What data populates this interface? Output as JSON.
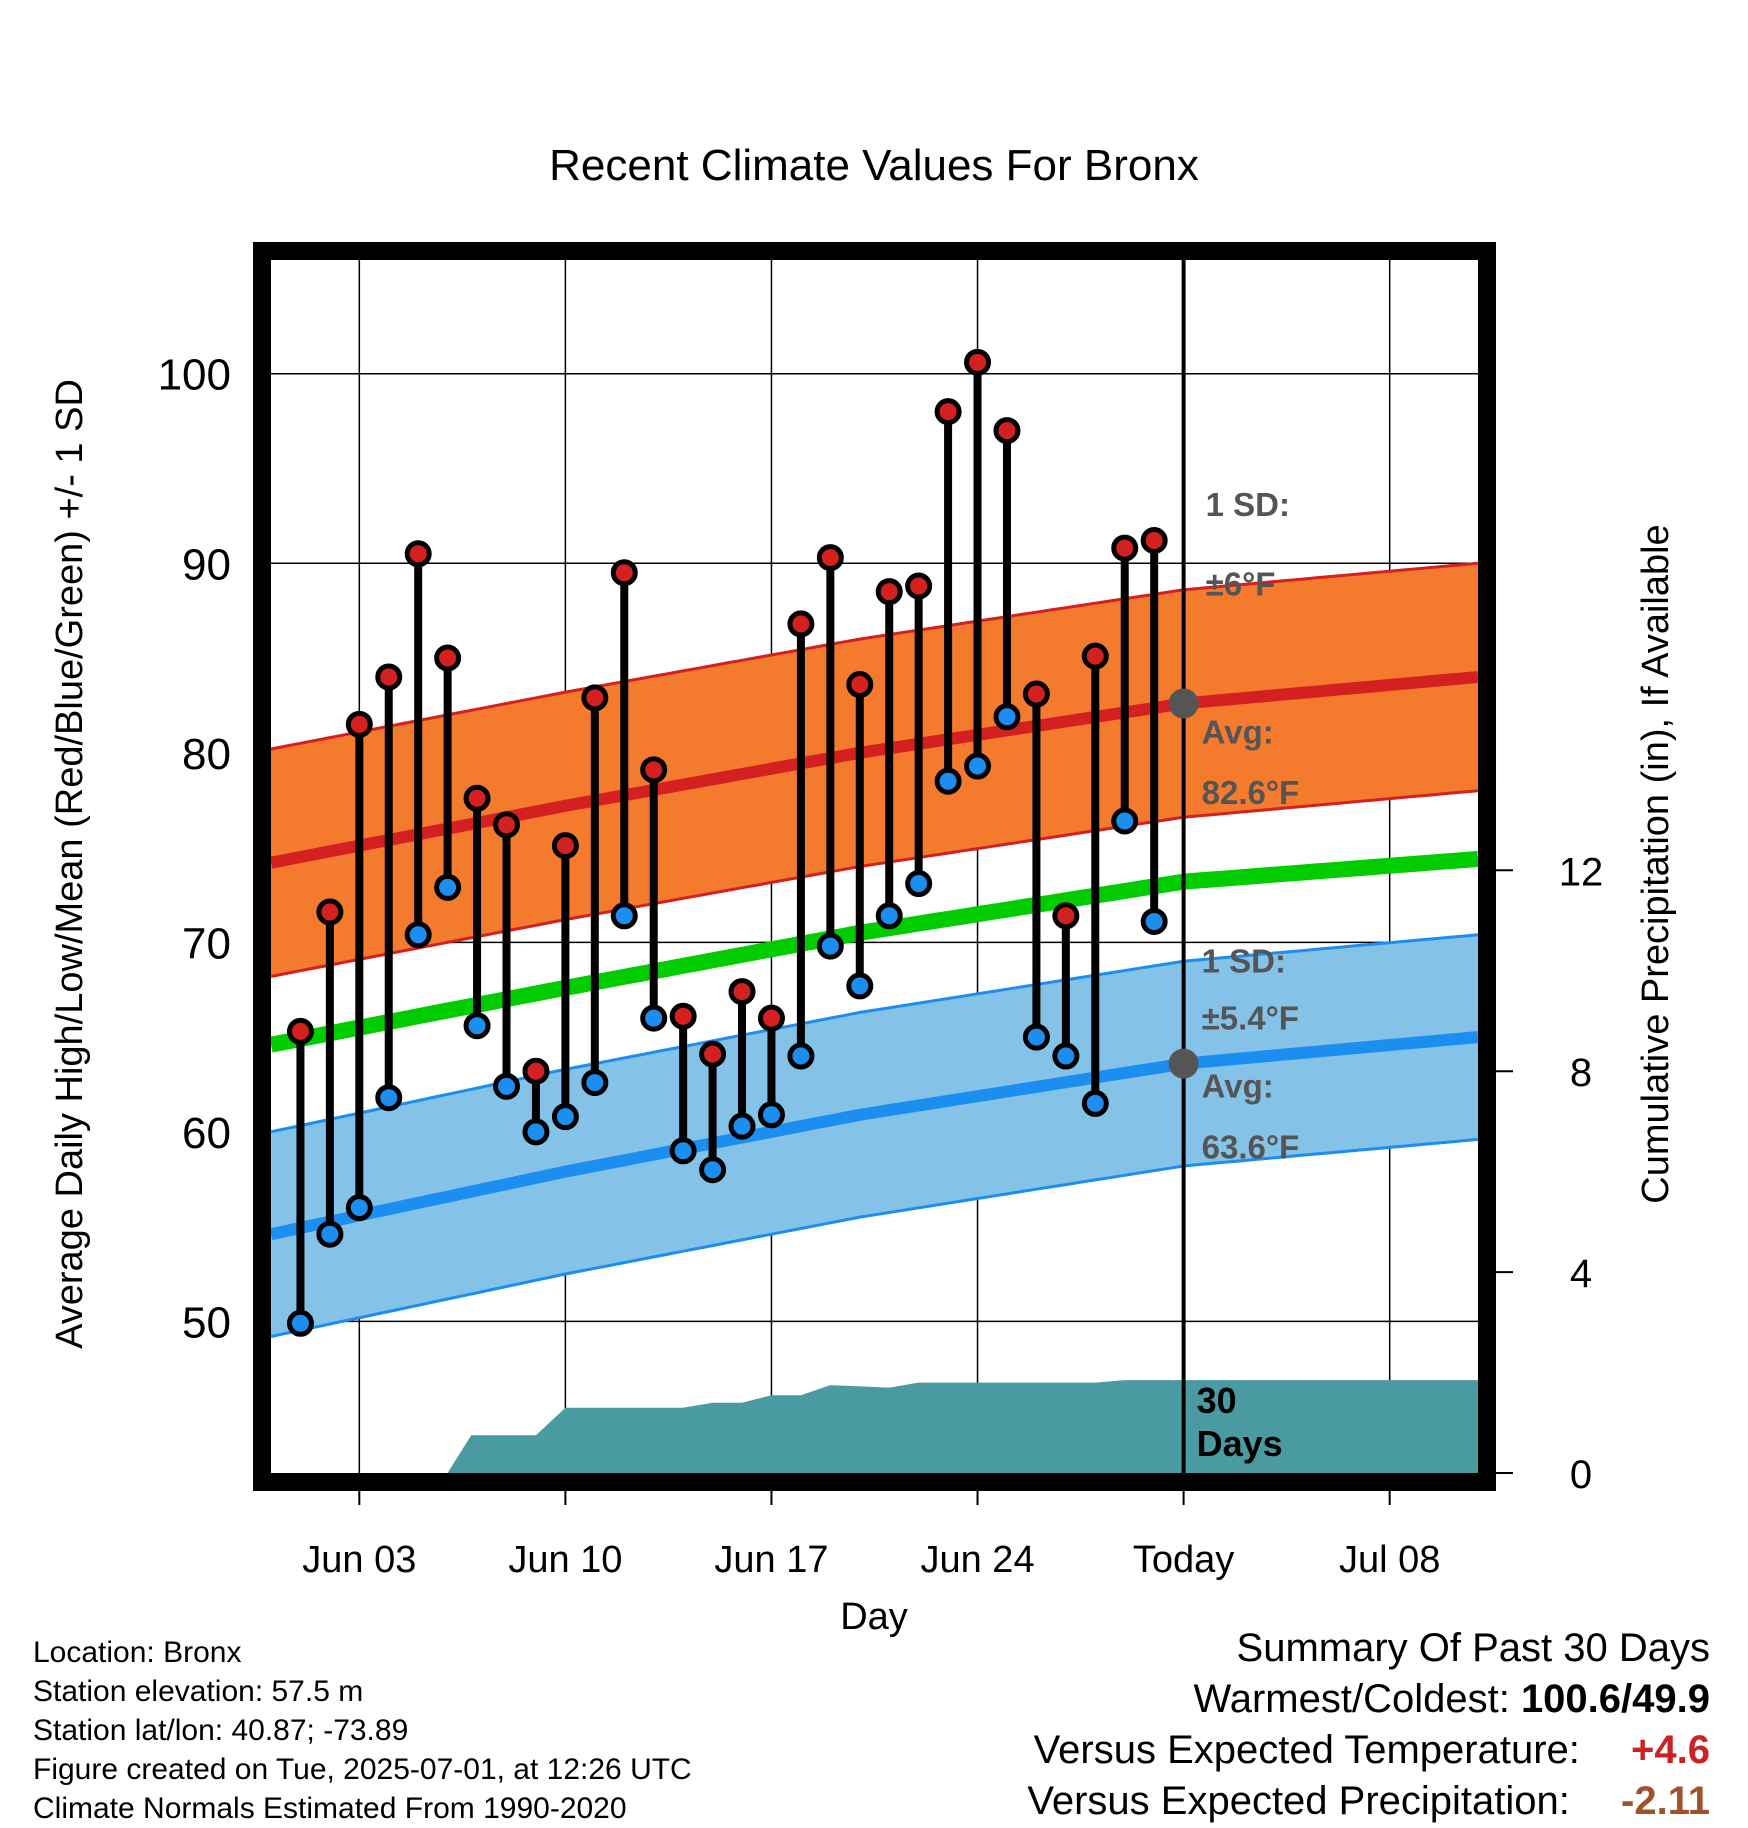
{
  "chart_data": {
    "type": "line",
    "title": "Recent Climate Values For Bronx",
    "xlabel": "Day",
    "ylabel": "Average Daily High/Low/Mean (Red/Blue/Green) +/- 1 SD",
    "y2label": "Cumulative Precipitation (in), If Available",
    "xlim": [
      0,
      41
    ],
    "ylim": [
      42,
      106
    ],
    "y2lim": [
      0,
      24
    ],
    "x_ticks": [
      {
        "x": 3,
        "label": "Jun 03"
      },
      {
        "x": 10,
        "label": "Jun 10"
      },
      {
        "x": 17,
        "label": "Jun 17"
      },
      {
        "x": 24,
        "label": "Jun 24"
      },
      {
        "x": 31,
        "label": "Today"
      },
      {
        "x": 38,
        "label": "Jul 08"
      }
    ],
    "y_ticks": [
      50,
      60,
      70,
      80,
      90,
      100
    ],
    "y2_ticks": [
      0,
      4,
      8,
      12
    ],
    "today_x": 31,
    "grid": true,
    "days": [
      1,
      2,
      3,
      4,
      5,
      6,
      7,
      8,
      9,
      10,
      11,
      12,
      13,
      14,
      15,
      16,
      17,
      18,
      19,
      20,
      21,
      22,
      23,
      24,
      25,
      26,
      27,
      28,
      29,
      30
    ],
    "daily_high": [
      65.3,
      71.6,
      81.5,
      84.0,
      90.5,
      85.0,
      77.6,
      76.2,
      63.2,
      75.1,
      82.9,
      89.5,
      79.1,
      66.1,
      64.1,
      67.4,
      66.0,
      86.8,
      90.3,
      83.6,
      88.5,
      88.8,
      98.0,
      100.6,
      97.0,
      83.1,
      71.4,
      85.1,
      90.8,
      91.2
    ],
    "daily_low": [
      49.9,
      54.6,
      56.0,
      61.8,
      70.4,
      72.9,
      65.6,
      62.4,
      60.0,
      60.8,
      62.6,
      71.4,
      66.0,
      59.0,
      58.0,
      60.3,
      60.9,
      64.0,
      69.8,
      67.7,
      71.4,
      73.1,
      78.5,
      79.3,
      81.9,
      65.0,
      64.0,
      61.5,
      76.4,
      71.1
    ],
    "normal_high": {
      "name": "Avg",
      "x": [
        0,
        10,
        20,
        31,
        41
      ],
      "values": [
        74.2,
        77.2,
        80.0,
        82.6,
        84.0
      ],
      "sd": 6,
      "label_avg": "Avg:",
      "label_value": "82.6°F",
      "label_sd_title": "1 SD:",
      "label_sd_value": "±6°F"
    },
    "normal_mean": {
      "x": [
        0,
        10,
        20,
        31,
        41
      ],
      "values": [
        64.6,
        67.6,
        70.5,
        73.2,
        74.4
      ]
    },
    "normal_low": {
      "name": "Avg",
      "x": [
        0,
        10,
        20,
        31,
        41
      ],
      "values": [
        54.6,
        57.9,
        60.9,
        63.6,
        65.0
      ],
      "sd": 5.4,
      "label_avg": "Avg:",
      "label_value": "63.6°F",
      "label_sd_title": "1 SD:",
      "label_sd_value": "±5.4°F"
    },
    "cumulative_precip": {
      "x": [
        0,
        6,
        6.8,
        9,
        10,
        14,
        15,
        16,
        17,
        18,
        19,
        21,
        22,
        23,
        24,
        28,
        29,
        41
      ],
      "values": [
        0,
        0,
        0.75,
        0.75,
        1.3,
        1.3,
        1.4,
        1.4,
        1.55,
        1.55,
        1.75,
        1.7,
        1.8,
        1.8,
        1.8,
        1.8,
        1.85,
        1.85
      ],
      "label_line1": "30",
      "label_line2": "Days"
    },
    "colors": {
      "high_band": "#f47a2e",
      "high_band_edge": "#d42020",
      "high_line": "#d42020",
      "mean_line": "#00cc00",
      "low_band": "#85c2e8",
      "low_band_edge": "#1c8ef0",
      "low_line": "#1c8ef0",
      "precip": "#4a9aa1",
      "high_marker": "#d42020",
      "low_marker": "#1c8ef0",
      "avg_marker": "#555555"
    }
  },
  "info": {
    "location": "Location: Bronx",
    "elevation": "Station elevation: 57.5 m",
    "latlon": "Station lat/lon: 40.87; -73.89",
    "created": "Figure created on Tue, 2025-07-01, at 12:26 UTC",
    "normals": "Climate Normals Estimated From 1990-2020"
  },
  "summary": {
    "title": "Summary Of Past 30 Days",
    "warmest_label": "Warmest/Coldest:",
    "warmest_value": "100.6/49.9",
    "temp_label": "Versus Expected Temperature:",
    "temp_value": "+4.6",
    "temp_color": "#cc2222",
    "precip_label": "Versus Expected Precipitation:",
    "precip_value": "-2.11",
    "precip_color": "#a0522d"
  }
}
